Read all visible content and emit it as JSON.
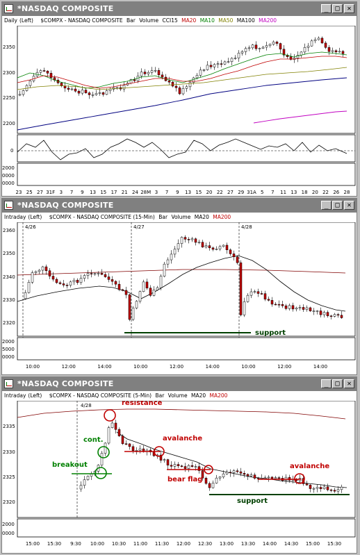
{
  "windows": [
    {
      "title": "*NASDAQ COMPOSITE",
      "info": {
        "period": "Daily",
        "scale": "(Left)",
        "symbol": "$COMPX - NASDAQ COMPOSITE",
        "style": "Bar",
        "volume": "Volume",
        "cci": "CCI15",
        "ma20": "MA20",
        "ma10": "MA10",
        "ma50": "MA50",
        "ma100": "MA100",
        "ma200": "MA200"
      },
      "y_ticks": [
        "2350",
        "2300",
        "2250",
        "2200"
      ],
      "cci_tick": "0",
      "vol_ticks": [
        "2000",
        "0000",
        "0000"
      ],
      "x_ticks": [
        "23",
        "25",
        "27",
        "31F",
        "3",
        "7",
        "9",
        "13",
        "15",
        "17",
        "21",
        "24",
        "28M",
        "3",
        "7",
        "9",
        "13",
        "15",
        "20",
        "22",
        "27",
        "29",
        "31A",
        "5",
        "7",
        "11",
        "13",
        "18",
        "20",
        "22",
        "26",
        "28"
      ]
    },
    {
      "title": "*NASDAQ COMPOSITE",
      "info": {
        "period": "Intraday",
        "scale": "(Left)",
        "symbol": "$COMPX - NASDAQ COMPOSITE (15-Min)",
        "style": "Bar",
        "volume": "Volume",
        "ma20": "MA20",
        "ma200": "MA200"
      },
      "day_labels": [
        "4/26",
        "4/27",
        "4/28"
      ],
      "y_ticks": [
        "2360",
        "2350",
        "2340",
        "2330",
        "2320"
      ],
      "vol_ticks": [
        "2000",
        "5000",
        "0000"
      ],
      "x_ticks": [
        "10:00",
        "12:00",
        "14:00",
        "10:00",
        "12:00",
        "14:00",
        "10:00",
        "12:00",
        "14:00"
      ],
      "annotations": {
        "support": "support"
      }
    },
    {
      "title": "*NASDAQ COMPOSITE",
      "info": {
        "period": "Intraday",
        "scale": "(Left)",
        "symbol": "$COMPX - NASDAQ COMPOSITE (5-Min)",
        "style": "Bar",
        "volume": "Volume",
        "ma20": "MA20",
        "ma200": "MA200"
      },
      "day_label": "4/28",
      "y_ticks": [
        "2335",
        "2330",
        "2325",
        "2320"
      ],
      "vol_ticks": [
        "2000",
        "0000"
      ],
      "x_ticks": [
        "15:00",
        "15:30",
        "9:30",
        "10:00",
        "10:30",
        "11:00",
        "11:30",
        "12:00",
        "12:30",
        "13:00",
        "13:30",
        "14:00",
        "14:30",
        "15:00",
        "15:30"
      ],
      "annotations": {
        "resistance": "resistance",
        "cont": "cont.",
        "breakout": "breakout",
        "avalanche1": "avalanche",
        "bear_flag": "bear flag",
        "avalanche2": "avalanche",
        "support": "support"
      }
    }
  ],
  "colors": {
    "up_candle": "#ffffff",
    "down_candle": "#c00000",
    "ma20": "#c00000",
    "ma10": "#008000",
    "ma50": "#808000",
    "ma100": "#000080",
    "ma200": "#c000c0",
    "annotation_red": "#c00000",
    "annotation_green": "#008000"
  }
}
